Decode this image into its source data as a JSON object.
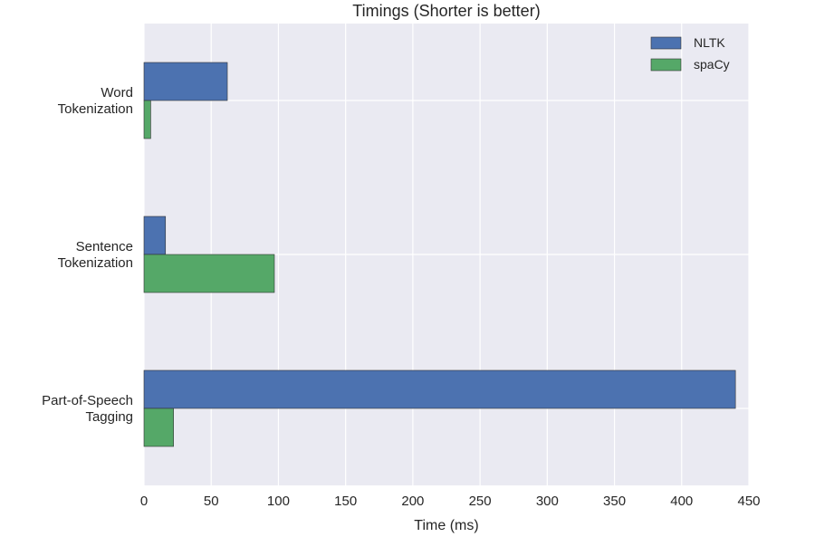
{
  "chart_data": {
    "type": "bar",
    "orientation": "horizontal",
    "title": "Timings (Shorter is better)",
    "xlabel": "Time (ms)",
    "ylabel": "",
    "xlim": [
      0,
      450
    ],
    "xticks": [
      0,
      50,
      100,
      150,
      200,
      250,
      300,
      350,
      400,
      450
    ],
    "categories": [
      [
        "Word",
        "Tokenization"
      ],
      [
        "Sentence",
        "Tokenization"
      ],
      [
        "Part-of-Speech",
        "Tagging"
      ]
    ],
    "series": [
      {
        "name": "NLTK",
        "color": "#4c72b0",
        "values": [
          62,
          16,
          440
        ]
      },
      {
        "name": "spaCy",
        "color": "#55a868",
        "values": [
          5,
          97,
          22
        ]
      }
    ],
    "grid": true,
    "legend": "top-right",
    "plot_background": "#eaeaf2",
    "grid_color": "#ffffff"
  }
}
